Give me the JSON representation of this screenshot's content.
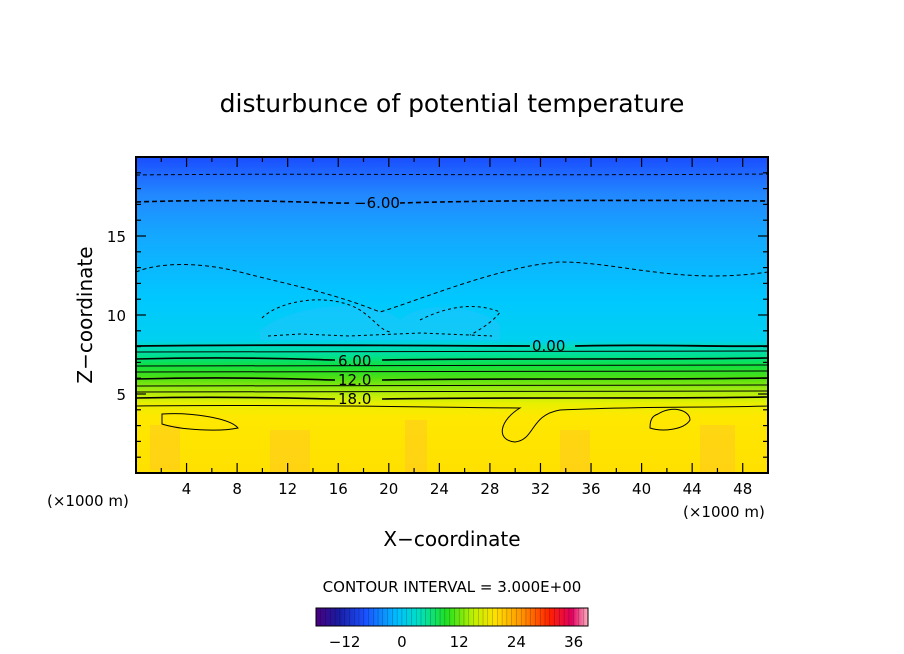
{
  "chart_data": {
    "type": "heatmap",
    "title": "disturbunce of potential temperature",
    "xlabel": "X−coordinate",
    "ylabel": "Z−coordinate",
    "x_unit_left": "(×1000 m)",
    "x_unit_right": "(×1000 m)",
    "xlim": [
      0,
      50
    ],
    "ylim": [
      0,
      20
    ],
    "x_ticks": [
      "4",
      "8",
      "12",
      "16",
      "20",
      "24",
      "28",
      "32",
      "36",
      "40",
      "44",
      "48"
    ],
    "y_ticks": [
      "5",
      "10",
      "15"
    ],
    "contour_interval_text": "CONTOUR INTERVAL = 3.000E+00",
    "contour_labels": [
      "−6.00",
      "0.00",
      "6.00",
      "12.0",
      "18.0"
    ],
    "colorbar": {
      "range": [
        -18,
        39
      ],
      "ticks": [
        "−12",
        "0",
        "12",
        "24",
        "36"
      ]
    },
    "field_profile": [
      {
        "z": 19.5,
        "value": -10
      },
      {
        "z": 18.5,
        "value": -8
      },
      {
        "z": 17,
        "value": -6
      },
      {
        "z": 15,
        "value": -4.5
      },
      {
        "z": 12,
        "value": -2
      },
      {
        "z": 9,
        "value": -1
      },
      {
        "z": 8,
        "value": 0
      },
      {
        "z": 7.5,
        "value": 3
      },
      {
        "z": 7,
        "value": 6
      },
      {
        "z": 6.5,
        "value": 9
      },
      {
        "z": 6,
        "value": 12
      },
      {
        "z": 5.5,
        "value": 15
      },
      {
        "z": 5,
        "value": 18
      },
      {
        "z": 4.5,
        "value": 21
      },
      {
        "z": 4,
        "value": 23
      },
      {
        "z": 0,
        "value": 24
      }
    ]
  }
}
